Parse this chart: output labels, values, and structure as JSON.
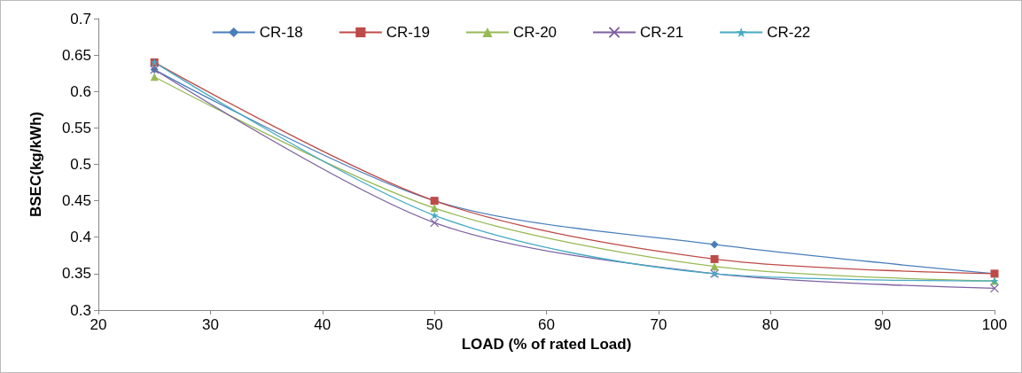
{
  "chart_data": {
    "type": "line",
    "xlabel": "LOAD (% of rated Load)",
    "ylabel": "BSEC(kg/kWh)",
    "x": [
      25,
      50,
      75,
      100
    ],
    "series": [
      {
        "name": "CR-18",
        "color": "#4a7ebb",
        "marker": "diamond",
        "values": [
          0.63,
          0.45,
          0.39,
          0.35
        ]
      },
      {
        "name": "CR-19",
        "color": "#be4b48",
        "marker": "square",
        "values": [
          0.64,
          0.45,
          0.37,
          0.35
        ]
      },
      {
        "name": "CR-20",
        "color": "#98b954",
        "marker": "triangle",
        "values": [
          0.62,
          0.44,
          0.36,
          0.34
        ]
      },
      {
        "name": "CR-21",
        "color": "#7d60a0",
        "marker": "cross",
        "values": [
          0.63,
          0.42,
          0.35,
          0.33
        ]
      },
      {
        "name": "CR-22",
        "color": "#46aac5",
        "marker": "star",
        "values": [
          0.64,
          0.43,
          0.35,
          0.34
        ]
      }
    ],
    "xlim": [
      20,
      100
    ],
    "xticks": [
      20,
      30,
      40,
      50,
      60,
      70,
      80,
      90,
      100
    ],
    "ylim": [
      0.3,
      0.7
    ],
    "yticks": [
      0.3,
      0.35,
      0.4,
      0.45,
      0.5,
      0.55,
      0.6,
      0.65,
      0.7
    ],
    "grid": false,
    "legend": "top"
  }
}
